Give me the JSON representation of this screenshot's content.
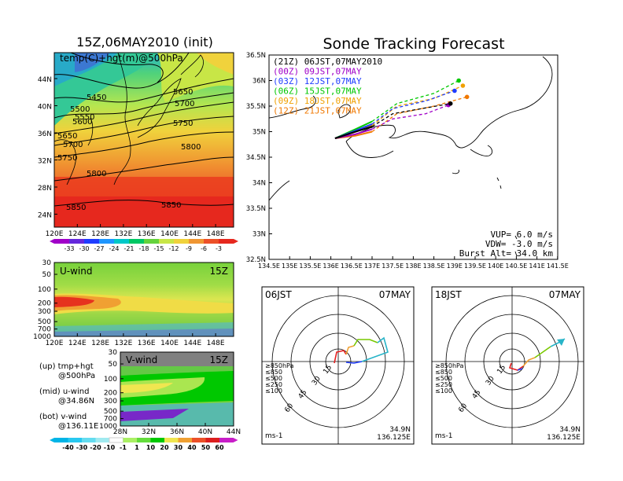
{
  "main_map": {
    "title": "15Z,06MAY2010 (init)",
    "label": "temp(C)+hgt(m)@500hPa",
    "lat_ticks": [
      "44N",
      "40N",
      "36N",
      "32N",
      "28N",
      "24N"
    ],
    "lon_ticks": [
      "120E",
      "124E",
      "128E",
      "132E",
      "136E",
      "140E",
      "144E",
      "148E"
    ],
    "contours": [
      "5450",
      "5500",
      "5550",
      "5600",
      "5650",
      "5700",
      "5750",
      "5800",
      "5850"
    ],
    "colorbar": [
      "-33",
      "-30",
      "-27",
      "-24",
      "-21",
      "-18",
      "-15",
      "-12",
      "-9",
      "-6",
      "-3"
    ]
  },
  "u_panel": {
    "label": "U-wind",
    "time": "15Z",
    "p_ticks": [
      "30",
      "50",
      "100",
      "200",
      "300",
      "500",
      "700",
      "1000"
    ],
    "lon_ticks": [
      "120E",
      "124E",
      "128E",
      "132E",
      "136E",
      "140E",
      "144E",
      "148E"
    ]
  },
  "v_panel": {
    "label": "V-wind",
    "time": "15Z",
    "p_ticks": [
      "30",
      "50",
      "100",
      "200",
      "300",
      "500",
      "700",
      "1000"
    ],
    "lat_ticks": [
      "28N",
      "32N",
      "36N",
      "40N",
      "44N"
    ],
    "colorbar": [
      "-40",
      "-30",
      "-20",
      "-10",
      "-1",
      "1",
      "10",
      "20",
      "30",
      "40",
      "50",
      "60"
    ]
  },
  "legend_text": {
    "up1": "(up) tmp+hgt",
    "up2": "@500hPa",
    "mid1": "(mid) u-wind",
    "mid2": "@34.86N",
    "bot1": "(bot) v-wind",
    "bot2": "@136.11E"
  },
  "track": {
    "title": "Sonde Tracking Forecast",
    "lat_ticks": [
      "36.5N",
      "36N",
      "35.5N",
      "35N",
      "34.5N",
      "34N",
      "33.5N",
      "33N",
      "32.5N"
    ],
    "lon_ticks": [
      "134.5E",
      "135E",
      "135.5E",
      "136E",
      "136.5E",
      "137E",
      "137.5E",
      "138E",
      "138.5E",
      "139E",
      "139.5E",
      "140E",
      "140.5E",
      "141E",
      "141.5E"
    ],
    "legend": [
      {
        "label": "(21Z)  06JST,07MAY2010",
        "color": "#000000"
      },
      {
        "label": "(00Z)  09JST,07MAY",
        "color": "#a000c8"
      },
      {
        "label": "(03Z)  12JST,07MAY",
        "color": "#1e3cff"
      },
      {
        "label": "(06Z)  15JST,07MAY",
        "color": "#00c800"
      },
      {
        "label": "(09Z)  18JST,07MAY",
        "color": "#f0a000"
      },
      {
        "label": "(12Z)  21JST,07MAY",
        "color": "#f07800"
      }
    ],
    "vup": "VUP=  6.0  m/s",
    "vdw": "VDW= -3.0  m/s",
    "burst": "Burst Alt=  34.0  km"
  },
  "hodo_left": {
    "time": "06JST",
    "date": "07MAY",
    "levels": [
      "≥850hPa",
      "≤850",
      "≤500",
      "≤250",
      "≤100"
    ],
    "rings": [
      "15",
      "30",
      "45",
      "60"
    ],
    "unit": "ms-1",
    "lat": "34.9N",
    "lon": "136.125E"
  },
  "hodo_right": {
    "time": "18JST",
    "date": "07MAY",
    "levels": [
      "≥850hPa",
      "≤850",
      "≤500",
      "≤250",
      "≤100"
    ],
    "rings": [
      "15",
      "30",
      "45",
      "60"
    ],
    "unit": "ms-1",
    "lat": "34.9N",
    "lon": "136.125E"
  },
  "chart_data": [
    {
      "type": "heatmap",
      "title": "15Z,06MAY2010 (init)",
      "subtitle": "temp(C)+hgt(m)@500hPa",
      "xlim": [
        120,
        150
      ],
      "ylim": [
        22,
        48
      ],
      "colorbar_ticks": [
        -33,
        -30,
        -27,
        -24,
        -21,
        -18,
        -15,
        -12,
        -9,
        -6,
        -3
      ]
    },
    {
      "type": "heatmap",
      "title": "U-wind",
      "xlim": [
        120,
        150
      ],
      "ylim": [
        1000,
        30
      ]
    },
    {
      "type": "heatmap",
      "title": "V-wind",
      "xlim": [
        28,
        44
      ],
      "ylim": [
        1000,
        30
      ],
      "colorbar_ticks": [
        -40,
        -30,
        -20,
        -10,
        -1,
        1,
        10,
        20,
        30,
        40,
        50,
        60
      ]
    },
    {
      "type": "line",
      "title": "Sonde Tracking Forecast",
      "xlim": [
        134.5,
        141.5
      ],
      "ylim": [
        32.5,
        36.5
      ],
      "series": [
        {
          "name": "(21Z)  06JST,07MAY2010",
          "x": [
            136.1,
            136.6,
            137.0,
            137.5,
            138.2,
            138.9
          ],
          "y": [
            34.87,
            35.0,
            35.1,
            35.35,
            35.45,
            35.55
          ]
        },
        {
          "name": "(00Z)  09JST,07MAY",
          "x": [
            136.1,
            136.6,
            137.0,
            137.5,
            138.3,
            138.85
          ],
          "y": [
            34.87,
            34.95,
            35.05,
            35.25,
            35.35,
            35.52
          ]
        },
        {
          "name": "(03Z)  12JST,07MAY",
          "x": [
            136.1,
            136.6,
            137.0,
            137.5,
            138.3,
            139.0
          ],
          "y": [
            34.87,
            35.02,
            35.15,
            35.45,
            35.6,
            35.8
          ]
        },
        {
          "name": "(06Z)  15JST,07MAY",
          "x": [
            136.1,
            136.6,
            137.0,
            137.6,
            138.5,
            139.1
          ],
          "y": [
            34.87,
            35.05,
            35.2,
            35.55,
            35.75,
            36.0
          ]
        },
        {
          "name": "(09Z)  18JST,07MAY",
          "x": [
            136.1,
            136.6,
            137.0,
            137.6,
            138.5,
            139.2
          ],
          "y": [
            34.87,
            35.0,
            35.12,
            35.5,
            35.65,
            35.9
          ]
        },
        {
          "name": "(12Z)  21JST,07MAY",
          "x": [
            136.1,
            136.6,
            137.0,
            137.6,
            138.5,
            139.3
          ],
          "y": [
            34.87,
            34.92,
            35.0,
            35.35,
            35.5,
            35.68
          ]
        }
      ]
    }
  ]
}
